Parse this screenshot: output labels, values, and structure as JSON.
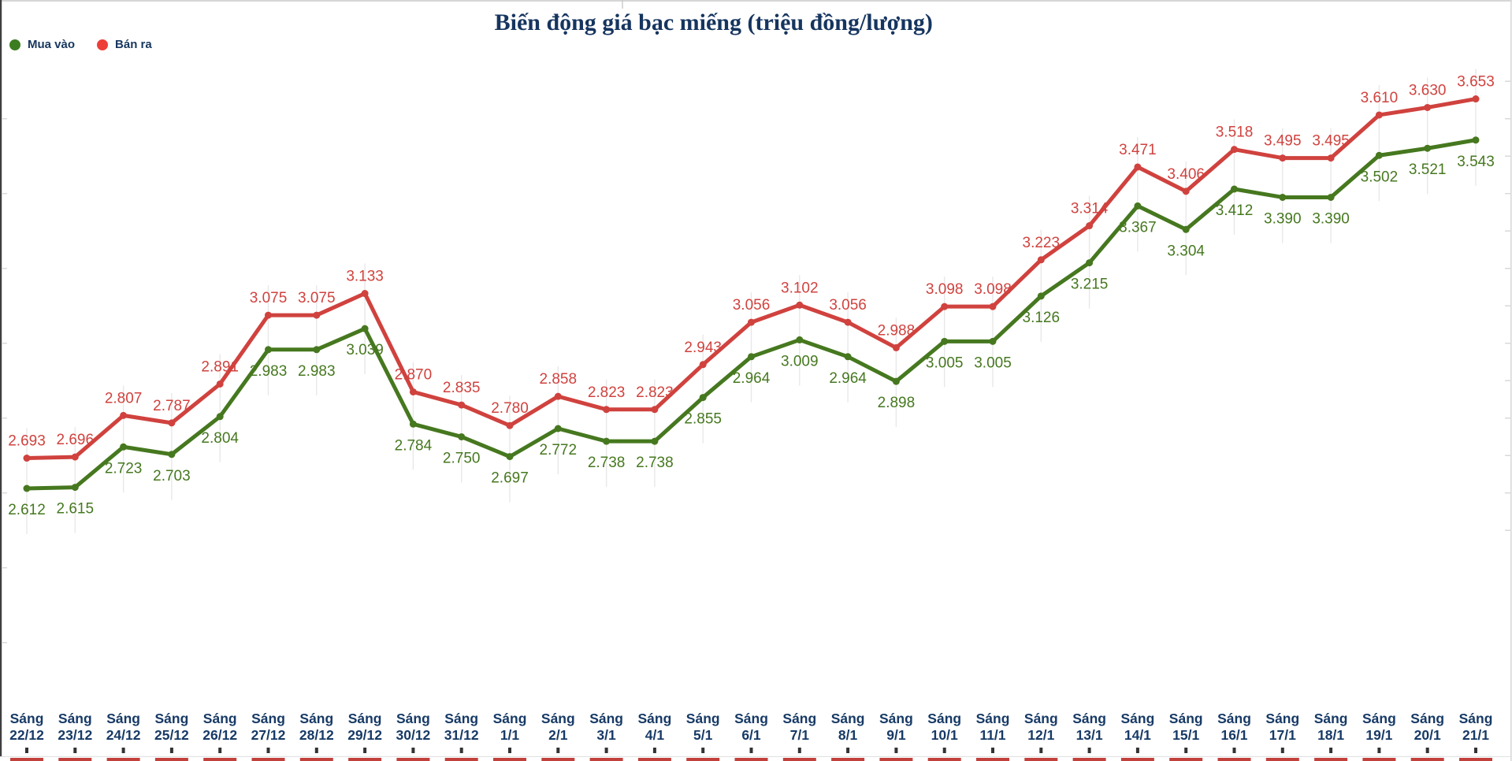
{
  "header": {
    "title": "Biến động giá bạc miếng (triệu đồng/lượng)"
  },
  "colors": {
    "title_text": "#16355f",
    "axis_text": "#173a66",
    "buy_line": "#46781f",
    "sell_line": "#d0423e",
    "legend_buy_dot": "#3c7d21",
    "legend_sell_dot": "#ee3e38",
    "grid_connector": "#e8e8e8",
    "frame_border": "#c9c9c9",
    "left_border": "#3f3f3f",
    "bottom_tick": "#333333",
    "bottom_red_dash": "#c2413c"
  },
  "chart_data": {
    "type": "line",
    "title": "Biến động giá bạc miếng (triệu đồng/lượng)",
    "categories": [
      "Sáng 22/12",
      "Sáng 23/12",
      "Sáng 24/12",
      "Sáng 25/12",
      "Sáng 26/12",
      "Sáng 27/12",
      "Sáng 28/12",
      "Sáng 29/12",
      "Sáng 30/12",
      "Sáng 31/12",
      "Sáng 1/1",
      "Sáng 2/1",
      "Sáng 3/1",
      "Sáng 4/1",
      "Sáng 5/1",
      "Sáng 6/1",
      "Sáng 7/1",
      "Sáng 8/1",
      "Sáng 9/1",
      "Sáng 10/1",
      "Sáng 11/1",
      "Sáng 12/1",
      "Sáng 13/1",
      "Sáng 14/1",
      "Sáng 15/1",
      "Sáng 16/1",
      "Sáng 17/1",
      "Sáng 18/1",
      "Sáng 19/1",
      "Sáng 20/1",
      "Sáng 21/1"
    ],
    "series": [
      {
        "name": "Mua vào",
        "color": "#46781f",
        "label_position": "below",
        "values": [
          2.612,
          2.615,
          2.723,
          2.703,
          2.804,
          2.983,
          2.983,
          3.039,
          2.784,
          2.75,
          2.697,
          2.772,
          2.738,
          2.738,
          2.855,
          2.964,
          3.009,
          2.964,
          2.898,
          3.005,
          3.005,
          3.126,
          3.215,
          3.367,
          3.304,
          3.412,
          3.39,
          3.39,
          3.502,
          3.521,
          3.543
        ]
      },
      {
        "name": "Bán ra",
        "color": "#d0423e",
        "label_position": "above",
        "values": [
          2.693,
          2.696,
          2.807,
          2.787,
          2.891,
          3.075,
          3.075,
          3.133,
          2.87,
          2.835,
          2.78,
          2.858,
          2.823,
          2.823,
          2.943,
          3.056,
          3.102,
          3.056,
          2.988,
          3.098,
          3.098,
          3.223,
          3.314,
          3.471,
          3.406,
          3.518,
          3.495,
          3.495,
          3.61,
          3.63,
          3.653
        ]
      }
    ],
    "value_label_decimals": 3,
    "xlabel": "",
    "ylabel": "",
    "ylim": [
      2.45,
      3.75
    ],
    "grid": "vertical-point-connectors",
    "legend_position": "top-left",
    "y_axis_labels_shown": false
  }
}
